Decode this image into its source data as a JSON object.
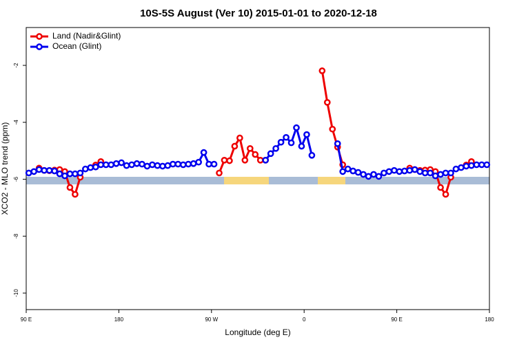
{
  "chart_data": {
    "type": "line",
    "title": "10S-5S August (Ver 10)   2015-01-01 to 2020-12-18",
    "xlabel": "Longitude (deg E)",
    "ylabel": "XCO2 - MLO trend (ppm)",
    "xlim": [
      90,
      540
    ],
    "xticks": [
      {
        "value": 90,
        "label": "90 E"
      },
      {
        "value": 180,
        "label": "180"
      },
      {
        "value": 270,
        "label": "90 W"
      },
      {
        "value": 360,
        "label": "0"
      },
      {
        "value": 450,
        "label": "90 E"
      },
      {
        "value": 540,
        "label": "180"
      }
    ],
    "ylim": [
      -10.58,
      -0.67
    ],
    "yticks": [
      -2,
      -4,
      -6,
      -8,
      -10
    ],
    "legend": "top-left",
    "series": [
      {
        "name": "Land (Nadir&Glint)",
        "color": "#ee0000",
        "x": [
          102.5,
          107.5,
          112.5,
          117.5,
          122.5,
          127.5,
          132.5,
          137.5,
          142.5,
          147.5,
          157.5,
          162.5,
          167.5,
          277.5,
          282.5,
          287.5,
          292.5,
          297.5,
          302.5,
          307.5,
          312.5,
          317.5,
          322.5,
          327.5,
          377.5,
          382.5,
          387.5,
          392.5,
          397.5,
          402.5,
          462.5,
          467.5,
          472.5,
          477.5,
          482.5,
          487.5,
          492.5,
          497.5,
          502.5,
          507.5,
          517.5,
          522.5
        ],
        "values": [
          -5.61,
          -5.69,
          -5.7,
          -5.68,
          -5.66,
          -5.73,
          -6.29,
          -6.53,
          -5.93,
          null,
          -5.5,
          -5.38,
          null,
          -5.78,
          -5.33,
          -5.35,
          -4.84,
          -4.55,
          -5.33,
          -4.92,
          -5.13,
          -5.33,
          -5.33,
          null,
          -2.19,
          -3.3,
          -4.24,
          -4.87,
          -5.49,
          null,
          -5.61,
          -5.66,
          -5.69,
          -5.68,
          -5.66,
          -5.73,
          -6.29,
          -6.53,
          -5.93,
          null,
          -5.5,
          -5.38
        ]
      },
      {
        "name": "Ocean (Glint)",
        "color": "#0000ee",
        "x": [
          92.5,
          97.5,
          102.5,
          107.5,
          112.5,
          117.5,
          122.5,
          127.5,
          132.5,
          137.5,
          142.5,
          147.5,
          152.5,
          157.5,
          162.5,
          167.5,
          172.5,
          177.5,
          182.5,
          187.5,
          192.5,
          197.5,
          202.5,
          207.5,
          212.5,
          217.5,
          222.5,
          227.5,
          232.5,
          237.5,
          242.5,
          247.5,
          252.5,
          257.5,
          262.5,
          267.5,
          272.5,
          277.5,
          322.5,
          327.5,
          332.5,
          337.5,
          342.5,
          347.5,
          352.5,
          357.5,
          362.5,
          367.5,
          372.5,
          392.5,
          397.5,
          402.5,
          407.5,
          412.5,
          417.5,
          422.5,
          427.5,
          432.5,
          437.5,
          442.5,
          447.5,
          452.5,
          457.5,
          462.5,
          467.5,
          472.5,
          477.5,
          482.5,
          487.5,
          492.5,
          497.5,
          502.5,
          507.5,
          512.5,
          517.5,
          522.5,
          527.5,
          532.5,
          537.5
        ],
        "values": [
          -5.78,
          -5.73,
          -5.66,
          -5.69,
          -5.69,
          -5.71,
          -5.81,
          -5.88,
          -5.81,
          -5.81,
          -5.78,
          -5.64,
          -5.59,
          -5.57,
          -5.49,
          -5.49,
          -5.49,
          -5.45,
          -5.42,
          -5.52,
          -5.49,
          -5.45,
          -5.47,
          -5.54,
          -5.49,
          -5.52,
          -5.54,
          -5.52,
          -5.47,
          -5.47,
          -5.49,
          -5.47,
          -5.45,
          -5.4,
          -5.06,
          -5.47,
          -5.47,
          null,
          -5.33,
          -5.1,
          -4.92,
          -4.7,
          -4.53,
          -4.72,
          -4.19,
          -4.84,
          -4.43,
          -5.16,
          null,
          -4.75,
          -5.73,
          -5.64,
          -5.71,
          -5.76,
          -5.83,
          -5.9,
          -5.83,
          -5.9,
          -5.78,
          -5.73,
          -5.69,
          -5.73,
          -5.71,
          -5.69,
          -5.66,
          -5.73,
          -5.78,
          -5.78,
          -5.88,
          -5.83,
          -5.78,
          -5.78,
          -5.64,
          -5.59,
          -5.54,
          -5.52,
          -5.49,
          -5.49,
          -5.49
        ]
      }
    ]
  }
}
